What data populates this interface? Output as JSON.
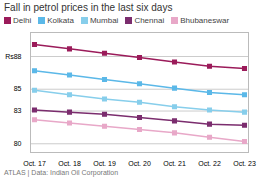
{
  "chart_data": {
    "type": "line",
    "title": "Fall in petrol prices in the last six days",
    "categories": [
      "Oct. 17",
      "Oct. 18",
      "Oct. 19",
      "Oct. 20",
      "Oct. 21",
      "Oct. 22",
      "Oct. 23"
    ],
    "series": [
      {
        "name": "Delhi",
        "color": "#9B1B5A",
        "marker": "square",
        "values": [
          89.1,
          88.7,
          88.3,
          87.9,
          87.5,
          87.1,
          86.9
        ]
      },
      {
        "name": "Kolkata",
        "color": "#5BB8E8",
        "marker": "square",
        "values": [
          86.7,
          86.3,
          85.9,
          85.5,
          85.1,
          84.7,
          84.5
        ]
      },
      {
        "name": "Mumbai",
        "color": "#87CEEB",
        "marker": "square",
        "values": [
          84.9,
          84.5,
          84.1,
          83.8,
          83.4,
          83.1,
          82.9
        ]
      },
      {
        "name": "Chennai",
        "color": "#7B2D6E",
        "marker": "square",
        "values": [
          83.1,
          82.9,
          82.7,
          82.4,
          82.1,
          81.8,
          81.7
        ]
      },
      {
        "name": "Bhubaneswar",
        "color": "#E8A8C8",
        "marker": "square",
        "values": [
          82.2,
          81.9,
          81.6,
          81.3,
          81.0,
          80.6,
          80.2
        ]
      }
    ],
    "ylim": [
      79.2,
      90.2
    ],
    "yticks": [
      80,
      83,
      85,
      {
        "value": 88,
        "label": "Rs88"
      }
    ],
    "grid": true,
    "caption": "ATLAS   | Data: Indian Oil Corporation"
  }
}
